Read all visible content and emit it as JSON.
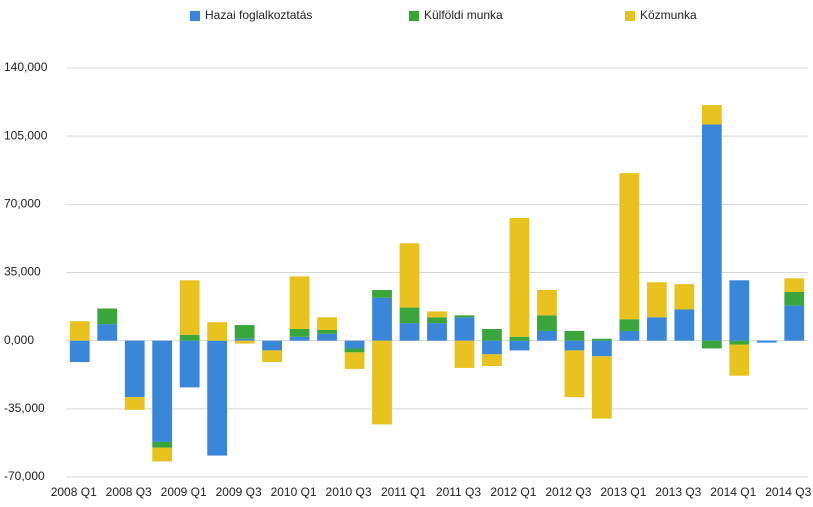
{
  "chart_data": {
    "type": "bar",
    "stacked": true,
    "categories": [
      "2008 Q1",
      null,
      "2008 Q3",
      null,
      "2009 Q1",
      null,
      "2009 Q3",
      null,
      "2010 Q1",
      null,
      "2010 Q3",
      null,
      "2011 Q1",
      null,
      "2011 Q3",
      null,
      "2012 Q1",
      null,
      "2012 Q3",
      null,
      "2013 Q1",
      null,
      "2013 Q3",
      null,
      "2014 Q1",
      null,
      "2014 Q3"
    ],
    "series": [
      {
        "name": "Hazai foglalkoztatás",
        "color": "#3a86d8",
        "values": [
          -11000,
          8500,
          -29000,
          -52000,
          -24000,
          -59000,
          1000,
          -5000,
          2000,
          3500,
          -4000,
          22000,
          9000,
          9000,
          12000,
          -7000,
          -5000,
          5000,
          -5000,
          -8000,
          5000,
          12000,
          16000,
          111000,
          31000,
          -1000,
          18000
        ]
      },
      {
        "name": "Külföldi munka",
        "color": "#3aa53a",
        "values": [
          0,
          8000,
          0,
          -3000,
          3000,
          0,
          7000,
          0,
          4000,
          2000,
          -2000,
          4000,
          8000,
          3000,
          1000,
          6000,
          2000,
          8000,
          5000,
          1000,
          6000,
          0,
          0,
          -4000,
          -2000,
          0,
          7000
        ]
      },
      {
        "name": "Közmunka",
        "color": "#e8c21e",
        "values": [
          10000,
          0,
          -6500,
          -7000,
          28000,
          9500,
          -1500,
          -6000,
          27000,
          6500,
          -8500,
          -43000,
          33000,
          3000,
          -14000,
          -6000,
          61000,
          13000,
          -24000,
          -32000,
          75000,
          18000,
          13000,
          10000,
          -16000,
          0,
          7000
        ]
      }
    ],
    "ylim": [
      -70000,
      140000
    ],
    "yticks": [
      {
        "value": -70000,
        "label": "-70,000"
      },
      {
        "value": -35000,
        "label": "-35,000"
      },
      {
        "value": 0,
        "label": "0,000"
      },
      {
        "value": 35000,
        "label": "35,000"
      },
      {
        "value": 70000,
        "label": "70,000"
      },
      {
        "value": 105000,
        "label": "105,000"
      },
      {
        "value": 140000,
        "label": "140,000"
      }
    ],
    "grid": true,
    "legend": "top"
  }
}
